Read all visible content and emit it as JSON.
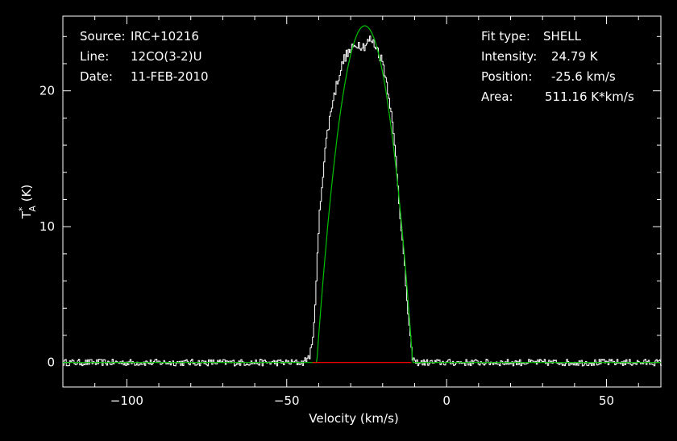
{
  "info_left": {
    "source_label": "Source:",
    "source_value": "IRC+10216",
    "line_label": "Line:",
    "line_value": "12CO(3-2)U",
    "date_label": "Date:",
    "date_value": "11-FEB-2010"
  },
  "info_right": {
    "fit_label": "Fit type:",
    "fit_value": "SHELL",
    "intensity_label": "Intensity:",
    "intensity_value": "24.79 K",
    "position_label": "Position:",
    "position_value": "-25.6 km/s",
    "area_label": "Area:",
    "area_value": "511.16 K*km/s"
  },
  "chart_data": {
    "type": "line",
    "xlabel": "Velocity (km/s)",
    "ylabel": "T*A (K)",
    "xlim": [
      -120,
      67
    ],
    "ylim": [
      -1.8,
      25.5
    ],
    "xticks": [
      -100,
      -50,
      0,
      50
    ],
    "yticks": [
      0,
      10,
      20
    ],
    "colors": {
      "spectrum": "#ffffff",
      "fit": "#00c000",
      "baseline": "#ff0000",
      "frame": "#ffffff"
    },
    "series": [
      {
        "role": "spectrum",
        "x": [
          -120,
          -100,
          -80,
          -60,
          -45,
          -43,
          -42,
          -41,
          -40,
          -39,
          -38,
          -36,
          -34,
          -32,
          -30,
          -28,
          -26,
          -24,
          -22,
          -20,
          -18,
          -16,
          -14,
          -12,
          -11,
          -10,
          -8,
          -5,
          0,
          20,
          40,
          67
        ],
        "y": [
          0,
          0,
          0,
          0,
          0,
          0.5,
          1.5,
          5.5,
          10.5,
          13.5,
          16,
          19,
          21,
          22.5,
          23,
          23.5,
          23.3,
          23.8,
          23.2,
          22,
          19.5,
          15,
          9,
          3,
          0.5,
          0,
          0,
          0,
          0,
          0,
          0,
          0
        ],
        "noise": 0.25
      },
      {
        "role": "fit",
        "intensity": 24.79,
        "center": -25.6,
        "half_width": 15.0,
        "x_range": [
          -120,
          67
        ]
      },
      {
        "role": "baseline",
        "x": [
          -42,
          -11
        ],
        "y": [
          0,
          0
        ]
      }
    ]
  }
}
